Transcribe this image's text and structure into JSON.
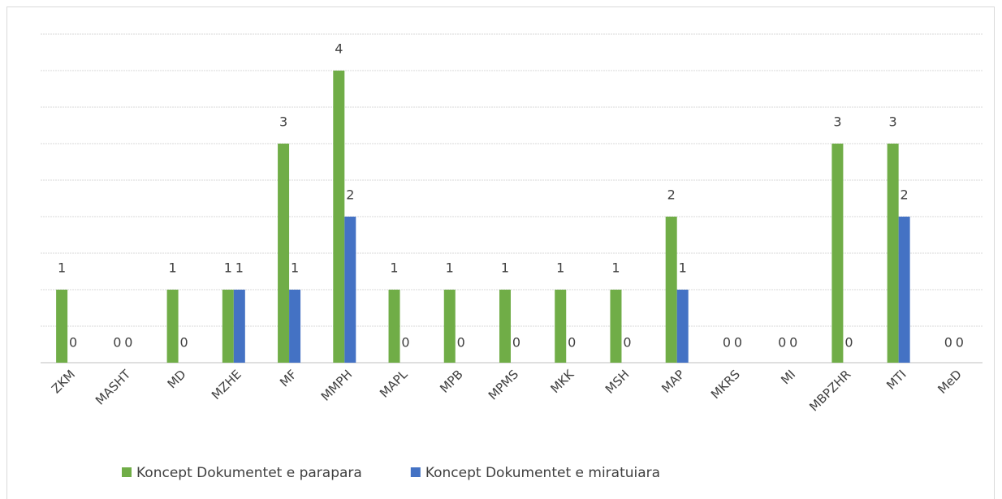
{
  "chart_data": {
    "type": "bar",
    "categories": [
      "ZKM",
      "MASHT",
      "MD",
      "MZHE",
      "MF",
      "MMPH",
      "MAPL",
      "MPB",
      "MPMS",
      "MKK",
      "MSH",
      "MAP",
      "MKRS",
      "MI",
      "MBPZHR",
      "MTI",
      "MeD"
    ],
    "series": [
      {
        "name": "Koncept Dokumentet e parapara",
        "color": "#70ad47",
        "values": [
          1,
          0,
          1,
          1,
          3,
          4,
          1,
          1,
          1,
          1,
          1,
          2,
          0,
          0,
          3,
          3,
          0
        ]
      },
      {
        "name": "Koncept Dokumentet e miratuiara",
        "color": "#4472c4",
        "values": [
          0,
          0,
          0,
          1,
          1,
          2,
          0,
          0,
          0,
          0,
          0,
          1,
          0,
          0,
          0,
          2,
          0
        ]
      }
    ],
    "ylim": [
      0,
      4.5
    ],
    "yticks": [
      0,
      0.5,
      1,
      1.5,
      2,
      2.5,
      3,
      3.5,
      4,
      4.5
    ],
    "grid": true,
    "legend": "bottom"
  }
}
